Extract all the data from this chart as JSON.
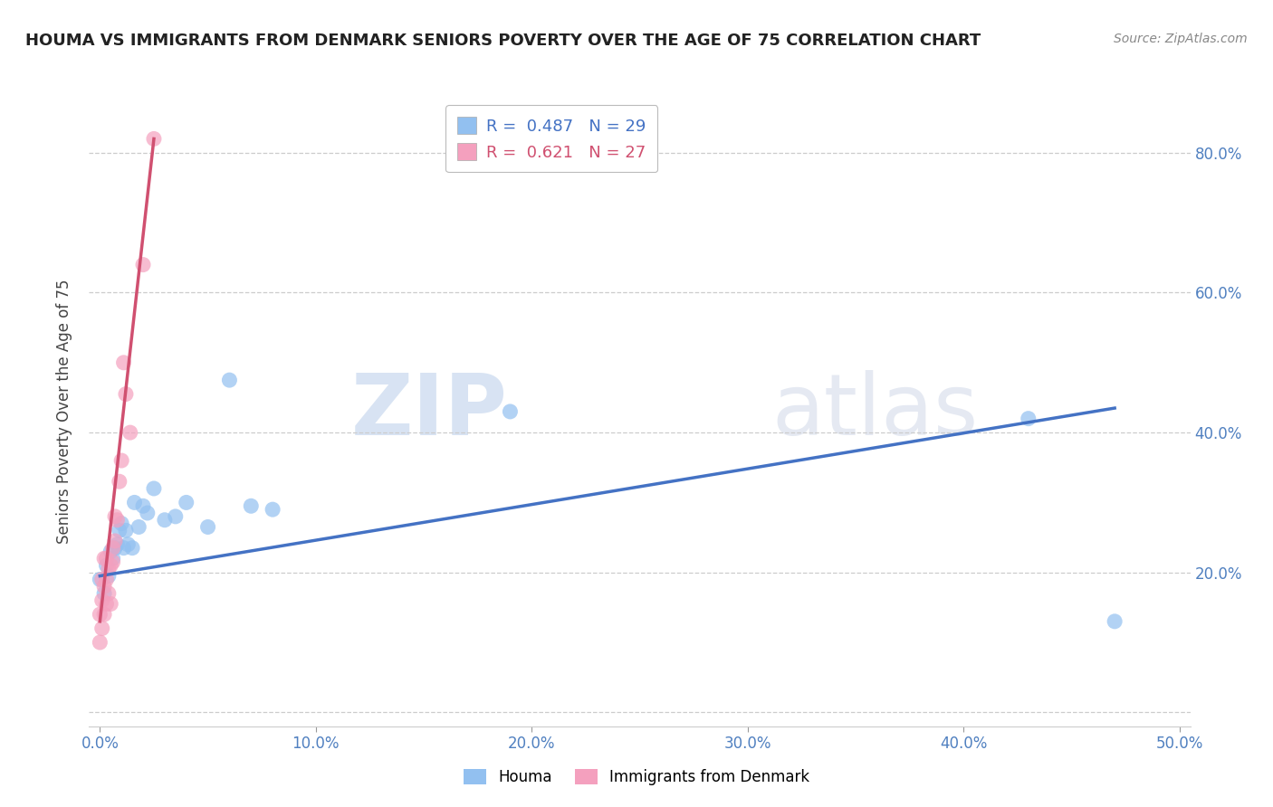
{
  "title": "HOUMA VS IMMIGRANTS FROM DENMARK SENIORS POVERTY OVER THE AGE OF 75 CORRELATION CHART",
  "source": "Source: ZipAtlas.com",
  "ylabel": "Seniors Poverty Over the Age of 75",
  "xlim": [
    -0.005,
    0.505
  ],
  "ylim": [
    -0.02,
    0.88
  ],
  "xticks": [
    0.0,
    0.1,
    0.2,
    0.3,
    0.4,
    0.5
  ],
  "xticklabels": [
    "0.0%",
    "10.0%",
    "20.0%",
    "30.0%",
    "40.0%",
    "50.0%"
  ],
  "ytick_positions": [
    0.0,
    0.2,
    0.4,
    0.6,
    0.8
  ],
  "yticklabels_right": [
    "",
    "20.0%",
    "40.0%",
    "60.0%",
    "80.0%"
  ],
  "houma_R": "0.487",
  "houma_N": "29",
  "denmark_R": "0.621",
  "denmark_N": "27",
  "houma_color": "#92C0F0",
  "denmark_color": "#F4A0BE",
  "houma_line_color": "#4472C4",
  "denmark_line_color": "#D05070",
  "watermark_zip": "ZIP",
  "watermark_atlas": "atlas",
  "houma_x": [
    0.0,
    0.002,
    0.003,
    0.004,
    0.005,
    0.006,
    0.007,
    0.008,
    0.009,
    0.01,
    0.011,
    0.012,
    0.013,
    0.015,
    0.016,
    0.018,
    0.02,
    0.022,
    0.025,
    0.03,
    0.035,
    0.04,
    0.05,
    0.06,
    0.07,
    0.08,
    0.19,
    0.43,
    0.47
  ],
  "houma_y": [
    0.19,
    0.17,
    0.21,
    0.195,
    0.23,
    0.22,
    0.235,
    0.24,
    0.26,
    0.27,
    0.235,
    0.26,
    0.24,
    0.235,
    0.3,
    0.265,
    0.295,
    0.285,
    0.32,
    0.275,
    0.28,
    0.3,
    0.265,
    0.475,
    0.295,
    0.29,
    0.43,
    0.42,
    0.13
  ],
  "denmark_x": [
    0.0,
    0.0,
    0.001,
    0.001,
    0.001,
    0.002,
    0.002,
    0.002,
    0.003,
    0.003,
    0.003,
    0.004,
    0.004,
    0.005,
    0.005,
    0.006,
    0.006,
    0.007,
    0.007,
    0.008,
    0.009,
    0.01,
    0.011,
    0.012,
    0.014,
    0.02,
    0.025
  ],
  "denmark_y": [
    0.14,
    0.1,
    0.12,
    0.16,
    0.19,
    0.14,
    0.18,
    0.22,
    0.155,
    0.19,
    0.22,
    0.17,
    0.205,
    0.155,
    0.21,
    0.215,
    0.235,
    0.245,
    0.28,
    0.275,
    0.33,
    0.36,
    0.5,
    0.455,
    0.4,
    0.64,
    0.82
  ],
  "houma_line_x": [
    0.0,
    0.47
  ],
  "houma_line_y": [
    0.195,
    0.435
  ],
  "denmark_line_x": [
    0.0,
    0.025
  ],
  "denmark_line_y": [
    0.13,
    0.82
  ]
}
